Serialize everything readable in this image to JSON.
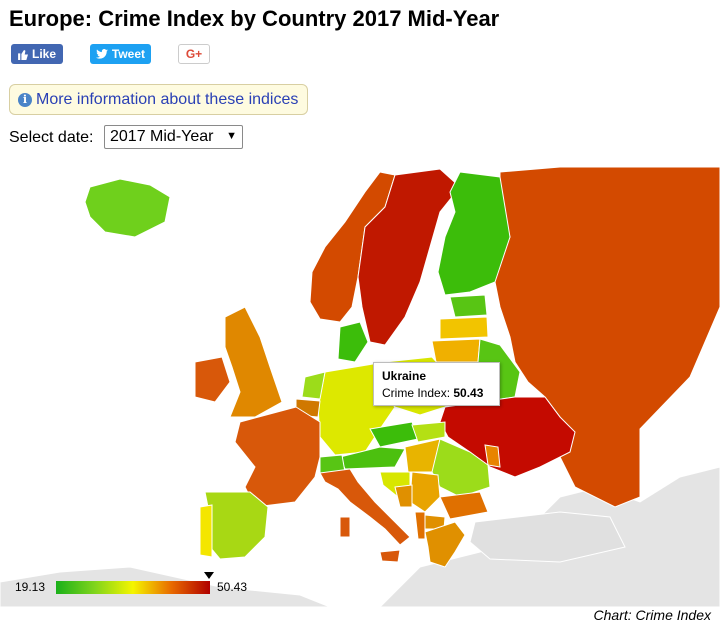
{
  "header": {
    "title": "Europe: Crime Index by Country 2017 Mid-Year"
  },
  "share": {
    "like": "Like",
    "tweet": "Tweet",
    "gplus": "G+"
  },
  "info": {
    "link_text": "More information about these indices"
  },
  "date_select": {
    "label": "Select date:",
    "value": "2017 Mid-Year"
  },
  "tooltip": {
    "country": "Ukraine",
    "label": "Crime Index:",
    "value": "50.43"
  },
  "legend": {
    "min": "19.13",
    "max": "50.43",
    "pointer_value": 50.43,
    "colors": [
      "#1ab01a",
      "#7fd41c",
      "#f5f500",
      "#e86a00",
      "#b00000"
    ]
  },
  "credit": "Chart: Crime Index",
  "icons": {
    "like": "thumbs-up-icon",
    "tweet": "twitter-bird-icon",
    "info": "info-circle-icon",
    "select": "caret-down-icon"
  }
}
